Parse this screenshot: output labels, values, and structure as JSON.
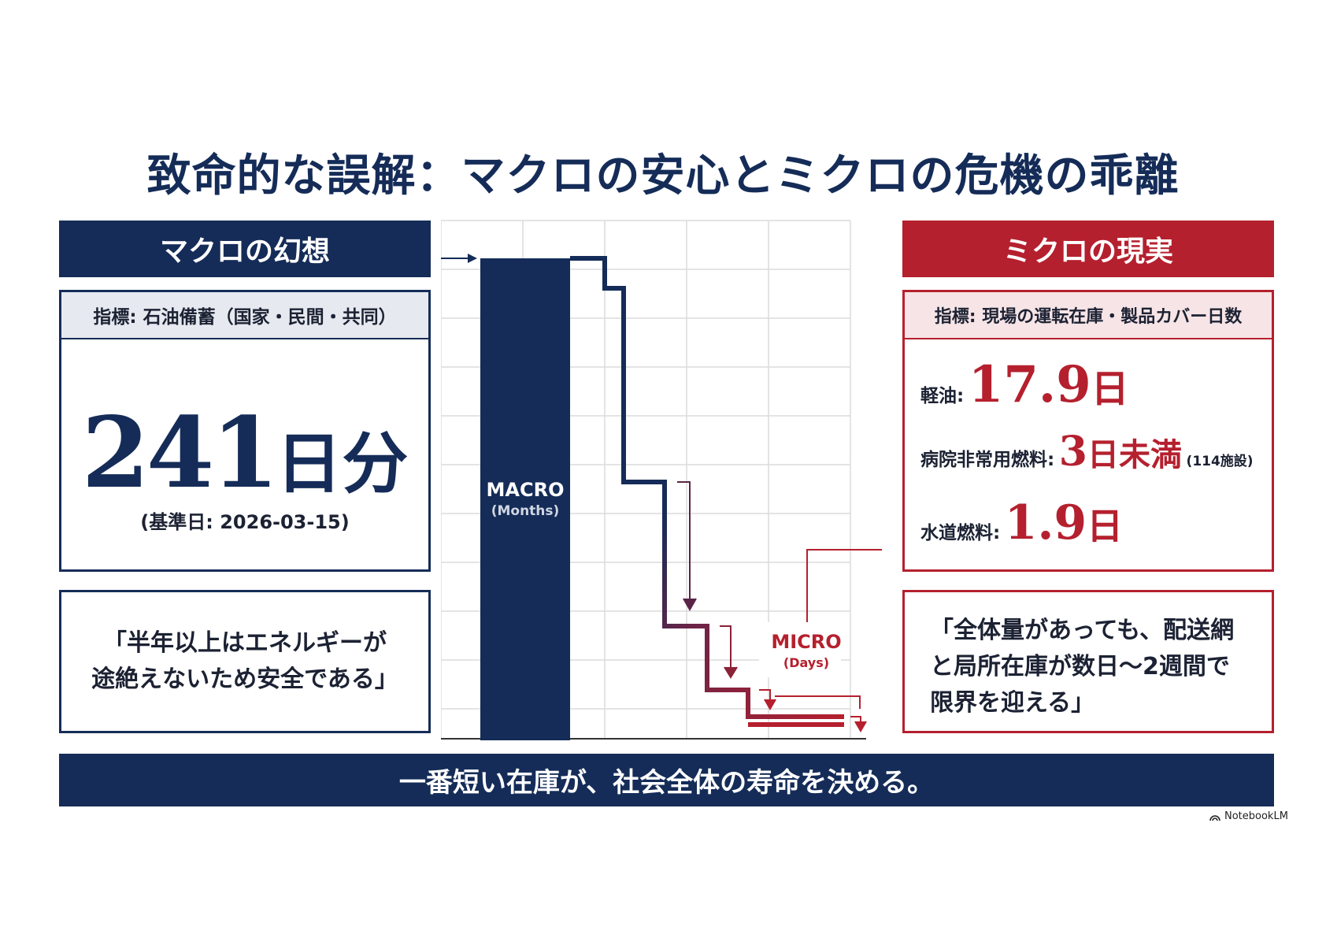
{
  "title": "致命的な誤解：マクロの安心とミクロの危機の乖離",
  "macro": {
    "header": "マクロの幻想",
    "indicator": "指標: 石油備蓄（国家・民間・共同）",
    "value": "241",
    "unit": "日分",
    "base_date": "(基準日: 2026-03-15)",
    "quote_line1": "「半年以上はエネルギーが",
    "quote_line2": "途絶えないため安全である」"
  },
  "micro": {
    "header": "ミクロの現実",
    "indicator": "指標: 現場の運転在庫・製品カバー日数",
    "items": [
      {
        "label": "軽油:",
        "value": "17.9",
        "unit": "日",
        "note": ""
      },
      {
        "label": "病院非常用燃料:",
        "value": "3",
        "unit": "日未満",
        "note": "(114施設)"
      },
      {
        "label": "水道燃料:",
        "value": "1.9",
        "unit": "日",
        "note": ""
      }
    ],
    "quote_line1": "「全体量があっても、配送網",
    "quote_line2": "と局所在庫が数日〜2週間で",
    "quote_line3": "限界を迎える」"
  },
  "chart_labels": {
    "macro_label": "MACRO",
    "macro_sub": "(Months)",
    "micro_label": "MICRO",
    "micro_sub": "(Days)"
  },
  "colors": {
    "navy": "#152c58",
    "red": "#b5202e",
    "grid": "#dcdcdc"
  },
  "footer": "一番短い在庫が、社会全体の寿命を決める。",
  "brand": "NotebookLM"
}
